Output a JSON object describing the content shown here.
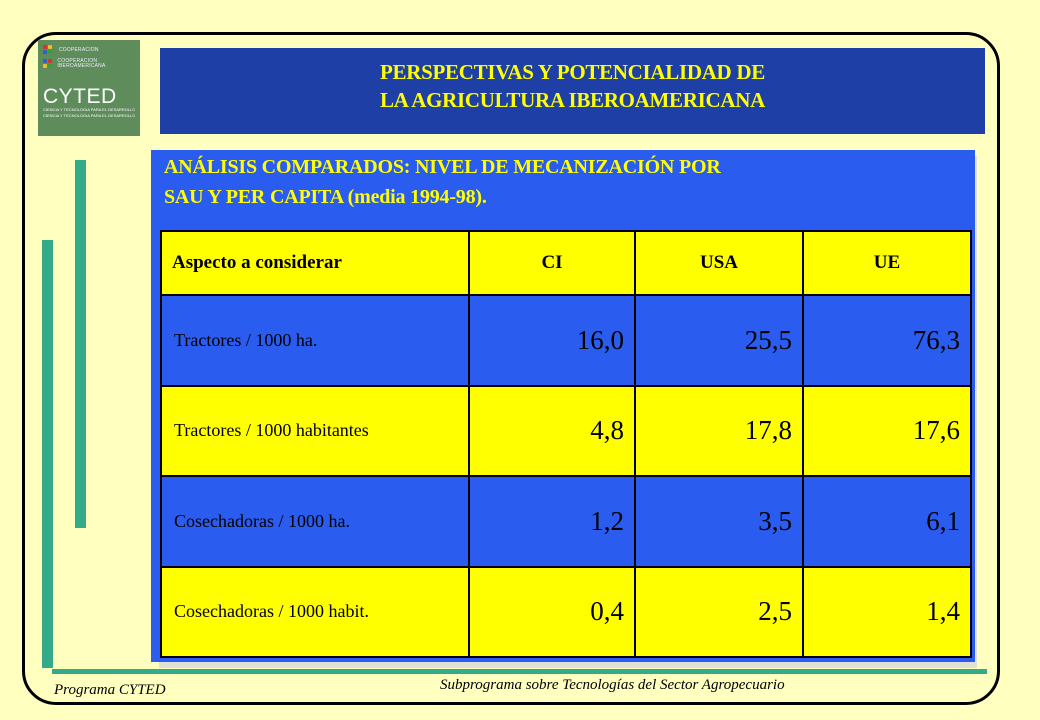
{
  "logo": {
    "org_line1": "COOPERACION",
    "org_line2": "COOPERACION IBEROAMERICANA",
    "brand": "CYTED",
    "tag_line1": "CIENCIA Y TECNOLOGIA PARA EL DESARROLLO",
    "tag_line2": "CIENCIA Y TECNOLOGIA PARA EL DESARROLLO"
  },
  "header": {
    "line1": "PERSPECTIVAS Y POTENCIALIDAD DE",
    "line2": "LA AGRICULTURA IBEROAMERICANA"
  },
  "subtitle": {
    "line1": "ANÁLISIS COMPARADOS: NIVEL DE MECANIZACIÓN POR",
    "line2": "SAU Y PER CAPITA (media 1994-98)."
  },
  "table": {
    "headers": [
      "Aspecto a considerar",
      "CI",
      "USA",
      "UE"
    ],
    "rows": [
      {
        "label": "Tractores / 1000 ha.",
        "values": [
          "16,0",
          "25,5",
          "76,3"
        ]
      },
      {
        "label": "Tractores / 1000 habitantes",
        "values": [
          "4,8",
          "17,8",
          "17,6"
        ]
      },
      {
        "label": "Cosechadoras / 1000 ha.",
        "values": [
          "1,2",
          "3,5",
          "6,1"
        ]
      },
      {
        "label": "Cosechadoras / 1000 habit.",
        "values": [
          "0,4",
          "2,5",
          "1,4"
        ]
      }
    ]
  },
  "footer": {
    "left": "Programa CYTED",
    "right": "Subprograma sobre Tecnologías del Sector Agropecuario"
  },
  "colors": {
    "page_background": "#ffffc0",
    "header_blue": "#1e3fa5",
    "panel_blue": "#2a5cf0",
    "highlight_yellow": "#ffff00",
    "accent_green": "#33aa88",
    "logo_green": "#5e8c5a"
  }
}
